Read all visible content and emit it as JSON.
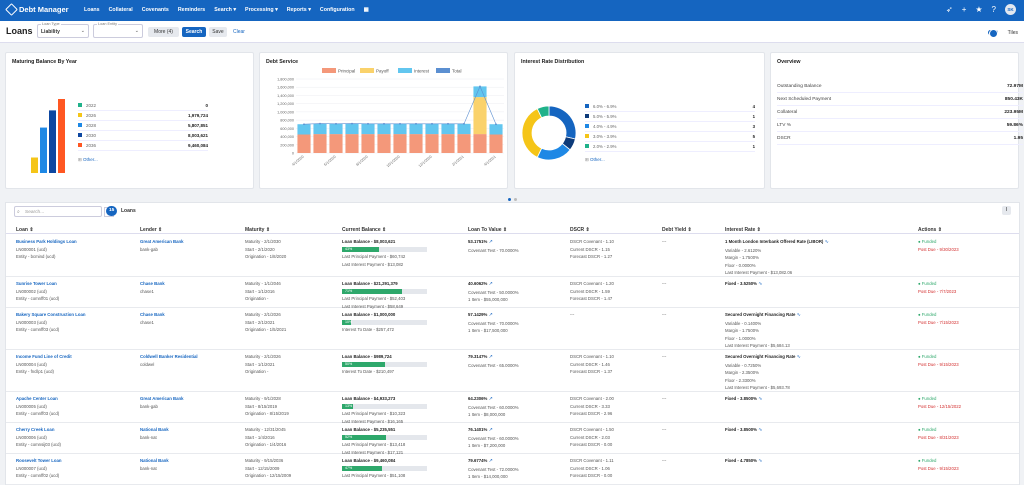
{
  "app": {
    "logo": "Debt Manager"
  },
  "nav": {
    "items": [
      "Loans",
      "Collateral",
      "Covenants",
      "Reminders",
      "Search ▾",
      "Processing ▾",
      "Reports ▾",
      "Configuration"
    ],
    "avatar": "SK"
  },
  "toolbar": {
    "title": "Loans",
    "loan_type_label": "Loan Type",
    "loan_type_value": "Liability",
    "loan_entity_label": "Loan Entity",
    "more_label": "More (4)",
    "search_btn": "Search",
    "save_btn": "Save",
    "clear_btn": "Clear",
    "tiles_label": "Tiles"
  },
  "maturing": {
    "title": "Maturing Balance By Year",
    "legend": [
      {
        "year": "2022",
        "value": "0",
        "color": "#20b28a"
      },
      {
        "year": "2026",
        "value": "1,979,724",
        "color": "#f5c518"
      },
      {
        "year": "2028",
        "value": "5,807,851",
        "color": "#1e88e5"
      },
      {
        "year": "2030",
        "value": "8,003,621",
        "color": "#0d47a1"
      },
      {
        "year": "2036",
        "value": "9,460,084",
        "color": "#ff5722"
      }
    ],
    "other": "Other..."
  },
  "debt_service": {
    "title": "Debt Service",
    "series": [
      "Principal",
      "Payoff",
      "Interest",
      "Total"
    ]
  },
  "interest_rate": {
    "title": "Interest Rate Distribution",
    "legend": [
      {
        "label": "6.0% - 6.9%",
        "value": "4",
        "color": "#1565c0"
      },
      {
        "label": "5.0% - 5.9%",
        "value": "1",
        "color": "#0d3b7a"
      },
      {
        "label": "4.0% - 4.9%",
        "value": "3",
        "color": "#1e88e5"
      },
      {
        "label": "3.0% - 3.9%",
        "value": "5",
        "color": "#f5c518"
      },
      {
        "label": "2.0% - 2.9%",
        "value": "1",
        "color": "#20b28a"
      }
    ],
    "other": "Other..."
  },
  "overview": {
    "title": "Overview",
    "rows": [
      {
        "label": "Outstanding Balance",
        "value": "72.97M"
      },
      {
        "label": "Next Scheduled Payment",
        "value": "850.43K"
      },
      {
        "label": "Collateral",
        "value": "223.95M"
      },
      {
        "label": "LTV %",
        "value": "59.86%"
      },
      {
        "label": "DSCR",
        "value": "1.95"
      }
    ]
  },
  "chart_data": [
    {
      "type": "bar",
      "title": "Maturing Balance By Year",
      "categories": [
        "2022",
        "2026",
        "2028",
        "2030",
        "2036"
      ],
      "values": [
        0,
        1979724,
        5807851,
        8003621,
        9460084
      ]
    },
    {
      "type": "bar",
      "title": "Debt Service",
      "categories": [
        "4/1/2020",
        "5/1/2020",
        "6/1/2020",
        "7/1/2020",
        "8/1/2020",
        "9/1/2020",
        "10/1/2020",
        "11/1/2020",
        "12/1/2020",
        "1/1/2021",
        "2/1/2021",
        "3/1/2021",
        "4/1/2021"
      ],
      "series": [
        {
          "name": "Principal",
          "values": [
            450000,
            460000,
            460000,
            460000,
            460000,
            460000,
            460000,
            460000,
            460000,
            460000,
            460000,
            460000,
            450000
          ]
        },
        {
          "name": "Payoff",
          "values": [
            0,
            0,
            0,
            0,
            0,
            0,
            0,
            0,
            0,
            0,
            0,
            900000,
            0
          ]
        },
        {
          "name": "Interest",
          "values": [
            250000,
            255000,
            250000,
            255000,
            250000,
            250000,
            250000,
            250000,
            250000,
            250000,
            250000,
            260000,
            250000
          ]
        },
        {
          "name": "Total",
          "values": [
            700000,
            715000,
            710000,
            715000,
            710000,
            710000,
            710000,
            710000,
            710000,
            710000,
            710000,
            1620000,
            700000
          ]
        }
      ],
      "ylim": [
        0,
        1800000
      ],
      "yticks": [
        "0",
        "200,000",
        "400,000",
        "600,000",
        "800,000",
        "1,000,000",
        "1,200,000",
        "1,400,000",
        "1,600,000",
        "1,800,000"
      ]
    },
    {
      "type": "pie",
      "title": "Interest Rate Distribution",
      "categories": [
        "6.0% - 6.9%",
        "5.0% - 5.9%",
        "4.0% - 4.9%",
        "3.0% - 3.9%",
        "2.0% - 2.9%"
      ],
      "values": [
        4,
        1,
        3,
        5,
        1
      ]
    }
  ],
  "table": {
    "search_placeholder": "Search...",
    "count": "15",
    "count_label": "Loans",
    "columns": [
      "Loan ⇕",
      "Lender ⇕",
      "Maturity ⇕",
      "Current Balance ⇕",
      "Loan To Value ⇕",
      "DSCR ⇕",
      "Debt Yield ⇕",
      "Interest Rate ⇕",
      "Actions ⇕"
    ],
    "rows": [
      {
        "loan": "Business Park Holdings Loan",
        "code": "LN000001 (ucd)",
        "entity": "Entity  -  bcmind (ucd)",
        "lender": "Great American Bank",
        "lender_sub": "bank-gab",
        "mat": "Maturity  -  2/1/2030",
        "start": "Start  -  2/1/2020",
        "orig": "Origination  -  1/8/2020",
        "bal": "Loan Balance  -  $8,003,621",
        "pct": "43%",
        "pctv": 43,
        "l1": "Last Principal Payment  -  $60,742",
        "l2": "Last Interest Payment  -  $13,082",
        "ltv": "53.1751%",
        "ltv1": "Covenant Test  -  70.0000%",
        "ltv2": "",
        "dscr1": "DSCR Covenant  -  1.10",
        "dscr2": "Current DSCR  -  1.15",
        "dscr3": "Forecast DSCR  -  1.27",
        "dy": "---",
        "ir": "1 Month London Interbank Offered Rate (LIBOR)",
        "ir1": "Variable  -  2.6120%",
        "ir2": "Margin  -  1.7500%",
        "ir3": "Floor  -  0.0000%",
        "ir4": "Last Interest Payment  -  $13,082.06",
        "status": "Funded",
        "due": "Post Due  -  9/30/2023",
        "h": 42
      },
      {
        "loan": "Sunrise Tower Loan",
        "code": "LN000002 (ucd)",
        "entity": "Entity  -  comnff01 (ucd)",
        "lender": "Chase Bank",
        "lender_sub": "chase1",
        "mat": "Maturity  -  1/1/2046",
        "start": "Start  -  1/1/2016",
        "orig": "Origination  -",
        "bal": "Loan Balance  -  $21,291,379",
        "pct": "71%",
        "pctv": 71,
        "l1": "Last Principal Payment  -  $52,403",
        "l2": "Last Interest Payment  -  $58,649",
        "ltv": "40.6062%",
        "ltv1": "Covenant Test  -  50.0000%",
        "ltv2": "1 Item  -  $55,000,000",
        "dscr1": "DSCR Covenant  -  1.20",
        "dscr2": "Current DSCR  -  1.59",
        "dscr3": "Forecast DSCR  -  1.47",
        "dy": "---",
        "ir": "Fixed  -  3.5250%",
        "ir1": "",
        "ir2": "",
        "ir3": "",
        "ir4": "",
        "status": "Funded",
        "due": "Post Due  -  7/7/2023",
        "h": 31
      },
      {
        "loan": "Bakery Square Construction Loan",
        "code": "LN000003 (ucd)",
        "entity": "Entity  -  comnff03 (ucd)",
        "lender": "Chase Bank",
        "lender_sub": "chase1",
        "mat": "Maturity  -  2/1/2026",
        "start": "Start  -  2/1/2021",
        "orig": "Origination  -  1/5/2021",
        "bal": "Loan Balance  -  $1,000,000",
        "pct": "10%",
        "pctv": 10,
        "l1": "Interest To Date  -  $257,472",
        "l2": "",
        "ltv": "57.1429%",
        "ltv1": "Covenant Test  -  70.0000%",
        "ltv2": "1 Item  -  $17,500,000",
        "dscr1": "---",
        "dscr2": "",
        "dscr3": "",
        "dy": "---",
        "ir": "Secured Overnight Financing Rate",
        "ir1": "Variable  -  0.1400%",
        "ir2": "Margin  -  1.7500%",
        "ir3": "Floor  -  1.0000%",
        "ir4": "Last Interest Payment  -  $5,684.13",
        "status": "Funded",
        "due": "Post Due  -  7/15/2023",
        "h": 42
      },
      {
        "loan": "Income Fund Line of Credit",
        "code": "LN000004 (ucd)",
        "entity": "Entity  -  fncllp1 (ucd)",
        "lender": "Coldwell Banker Residential",
        "lender_sub": "coldwel",
        "mat": "Maturity  -  2/1/2026",
        "start": "Start  -  1/1/2021",
        "orig": "Origination  -",
        "bal": "Loan Balance  -  $989,724",
        "pct": "50%",
        "pctv": 50,
        "l1": "Interest To Date  -  $210,497",
        "l2": "",
        "ltv": "79.3147%",
        "ltv1": "Covenant Test  -  65.0000%",
        "ltv2": "",
        "dscr1": "DSCR Covenant  -  1.10",
        "dscr2": "Current DSCR  -  1.46",
        "dscr3": "Forecast DSCR  -  1.37",
        "dy": "---",
        "ir": "Secured Overnight Financing Rate",
        "ir1": "Variable  -  0.7250%",
        "ir2": "Margin  -  2.3500%",
        "ir3": "Floor  -  2.3300%",
        "ir4": "Last Interest Payment  -  $5,693.78",
        "status": "Funded",
        "due": "Post Due  -  9/15/2023",
        "h": 42
      },
      {
        "loan": "Apache Center Loan",
        "code": "LN000005 (ucd)",
        "entity": "Entity  -  comnff03 (ucd)",
        "lender": "Great American Bank",
        "lender_sub": "bank-gab",
        "mat": "Maturity  -  9/1/2028",
        "start": "Start  -  8/15/2019",
        "orig": "Origination  -  8/15/2019",
        "bal": "Loan Balance  -  $4,933,273",
        "pct": "13%",
        "pctv": 13,
        "l1": "Last Principal Payment  -  $10,323",
        "l2": "Last Interest Payment  -  $16,165",
        "ltv": "64.2306%",
        "ltv1": "Covenant Test  -  60.0000%",
        "ltv2": "1 Item  -  $8,000,000",
        "dscr1": "DSCR Covenant  -  2.00",
        "dscr2": "Current DSCR  -  3.33",
        "dscr3": "Forecast DSCR  -  2.96",
        "dy": "---",
        "ir": "Fixed  -  3.8500%",
        "ir1": "",
        "ir2": "",
        "ir3": "",
        "ir4": "",
        "status": "Funded",
        "due": "Post Due  -  12/15/2022",
        "h": 31
      },
      {
        "loan": "Cherry Creek Loan",
        "code": "LN000006 (ucd)",
        "entity": "Entity  -  comnsij03 (ucd)",
        "lender": "National Bank",
        "lender_sub": "bank-nat",
        "mat": "Maturity  -  12/31/2045",
        "start": "Start  -  1/4/2016",
        "orig": "Origination  -  1/4/2016",
        "bal": "Loan Balance  -  $5,235,551",
        "pct": "52%",
        "pctv": 52,
        "l1": "Last Principal Payment  -  $13,418",
        "l2": "Last Interest Payment  -  $17,121",
        "ltv": "76.1401%",
        "ltv1": "Covenant Test  -  60.0000%",
        "ltv2": "1 Item  -  $7,200,000",
        "dscr1": "DSCR Covenant  -  1.50",
        "dscr2": "Current DSCR  -  2.03",
        "dscr3": "Forecast DSCR  -  0.00",
        "dy": "---",
        "ir": "Fixed  -  3.8500%",
        "ir1": "",
        "ir2": "",
        "ir3": "",
        "ir4": "",
        "status": "Funded",
        "due": "Post Due  -  8/31/2023",
        "h": 31
      },
      {
        "loan": "Roosevelt Tower Loan",
        "code": "LN000007 (ucd)",
        "entity": "Entity  -  comnff02 (ucd)",
        "lender": "National Bank",
        "lender_sub": "bank-nat",
        "mat": "Maturity  -  9/15/2036",
        "start": "Start  -  12/15/2009",
        "orig": "Origination  -  12/15/2009",
        "bal": "Loan Balance  -  $9,460,084",
        "pct": "47%",
        "pctv": 47,
        "l1": "Last Principal Payment  -  $51,108",
        "l2": "",
        "ltv": "79.6774%",
        "ltv1": "Covenant Test  -  72.0000%",
        "ltv2": "1 Item  -  $14,000,000",
        "dscr1": "DSCR Covenant  -  1.11",
        "dscr2": "Current DSCR  -  1.06",
        "dscr3": "Forecast DSCR  -  0.00",
        "dy": "---",
        "ir": "Fixed  -  4.7850%",
        "ir1": "",
        "ir2": "",
        "ir3": "",
        "ir4": "",
        "status": "Funded",
        "due": "Post Due  -  9/15/2023",
        "h": 31
      }
    ]
  }
}
